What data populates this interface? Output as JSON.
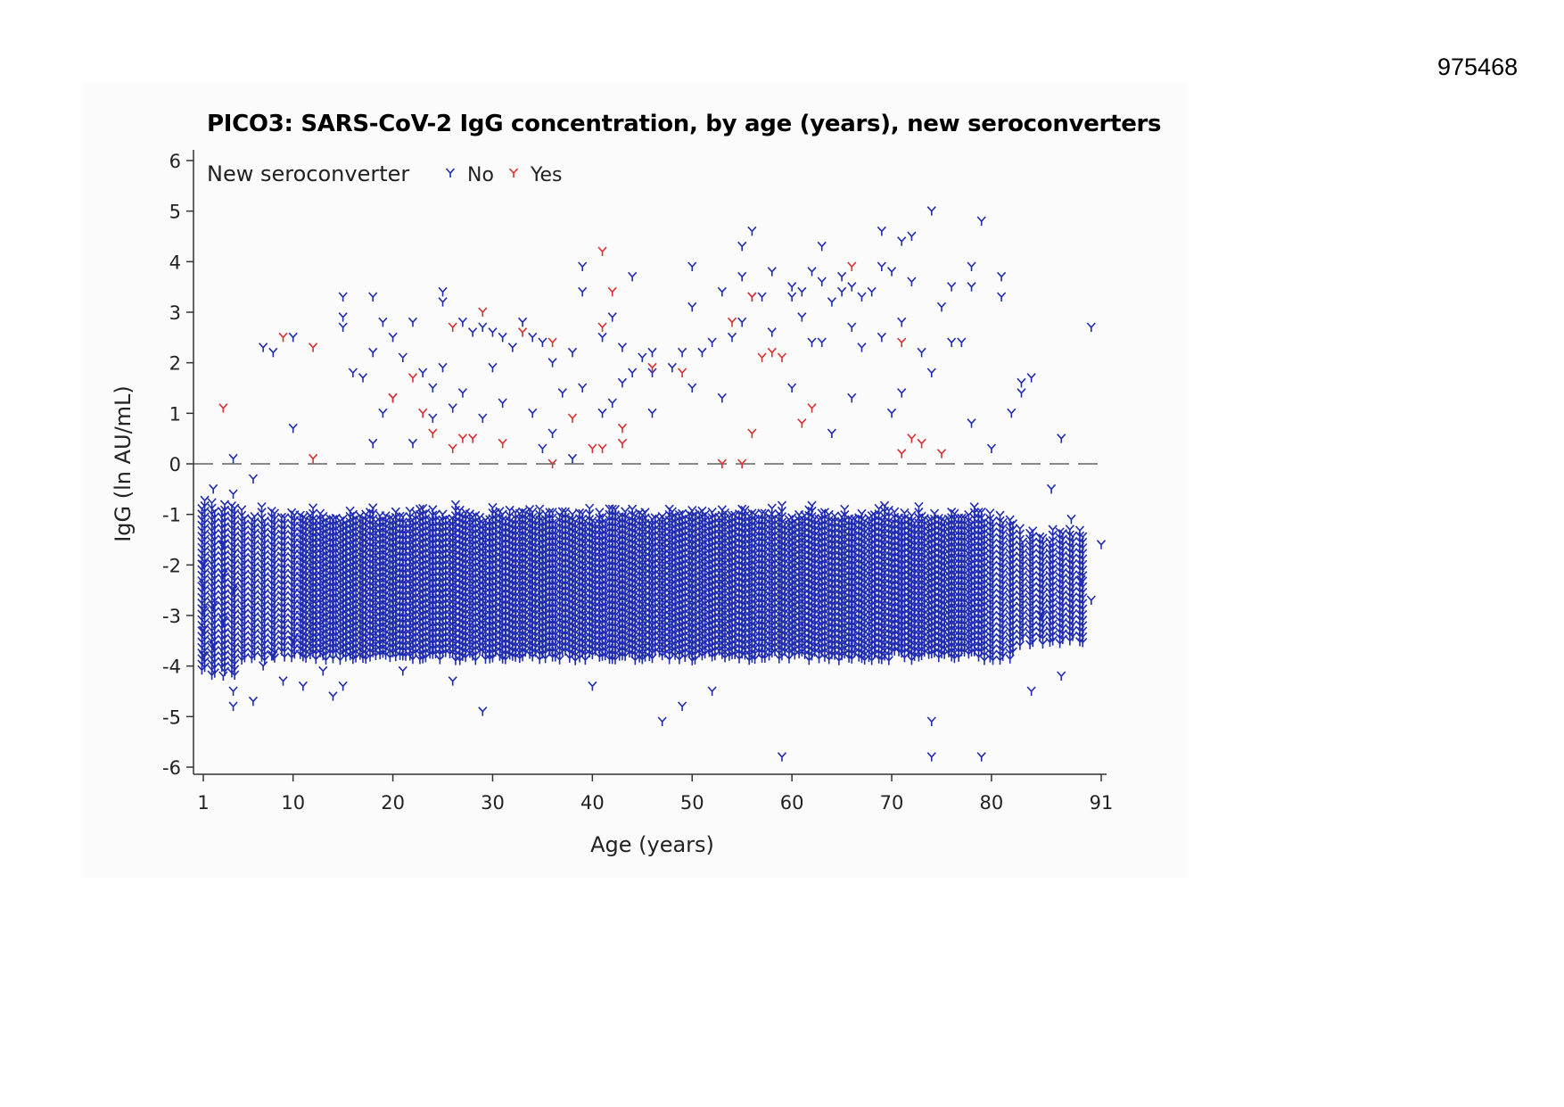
{
  "page_number": "975468",
  "chart_data": {
    "type": "scatter",
    "title": "PICO3: SARS-CoV-2 IgG concentration, by age (years), new seroconverters",
    "xlabel": "Age (years)",
    "ylabel": "IgG (ln AU/mL)",
    "xlim": [
      1,
      91
    ],
    "ylim": [
      -6,
      6
    ],
    "x_ticks": [
      "1",
      "10",
      "20",
      "30",
      "40",
      "50",
      "60",
      "70",
      "80",
      "91"
    ],
    "y_ticks": [
      "6",
      "5",
      "4",
      "3",
      "2",
      "1",
      "0",
      "-1",
      "-2",
      "-3",
      "-4",
      "-5",
      "-6"
    ],
    "reference_line": {
      "y": 0,
      "style": "dashed"
    },
    "legend": {
      "title": "New seroconverter",
      "placement": "top-left",
      "entries": [
        "No",
        "Yes"
      ]
    },
    "colors": {
      "No": "#1f2bb0",
      "Yes": "#d93030",
      "reference_line": "#888888"
    },
    "series": [
      {
        "name": "No",
        "points": [
          [
            1,
            -2.0
          ],
          [
            1,
            -2.4
          ],
          [
            1,
            -2.9
          ],
          [
            1,
            -3.3
          ],
          [
            1,
            -3.8
          ],
          [
            2,
            -0.5
          ],
          [
            2,
            -2.8
          ],
          [
            2,
            -3.6
          ],
          [
            3,
            -1.6
          ],
          [
            3,
            -2.2
          ],
          [
            3,
            -3.1
          ],
          [
            3,
            -4.2
          ],
          [
            4,
            -0.6
          ],
          [
            4,
            -2.5
          ],
          [
            4,
            -4.5
          ],
          [
            4,
            -4.8
          ],
          [
            4,
            0.1
          ],
          [
            6,
            -0.3
          ],
          [
            6,
            -4.7
          ],
          [
            7,
            2.3
          ],
          [
            7,
            -4.0
          ],
          [
            8,
            2.2
          ],
          [
            8,
            -3.8
          ],
          [
            9,
            -4.3
          ],
          [
            10,
            2.5
          ],
          [
            10,
            0.7
          ],
          [
            10,
            -3.5
          ],
          [
            11,
            -4.4
          ],
          [
            13,
            -4.1
          ],
          [
            14,
            -4.6
          ],
          [
            15,
            3.3
          ],
          [
            15,
            2.9
          ],
          [
            15,
            2.7
          ],
          [
            15,
            -4.4
          ],
          [
            16,
            1.8
          ],
          [
            17,
            1.7
          ],
          [
            18,
            3.3
          ],
          [
            18,
            2.2
          ],
          [
            18,
            0.4
          ],
          [
            19,
            2.8
          ],
          [
            19,
            1.0
          ],
          [
            20,
            2.5
          ],
          [
            20,
            1.3
          ],
          [
            21,
            2.1
          ],
          [
            21,
            -4.1
          ],
          [
            22,
            2.8
          ],
          [
            22,
            0.4
          ],
          [
            23,
            1.8
          ],
          [
            24,
            1.5
          ],
          [
            24,
            0.9
          ],
          [
            25,
            3.4
          ],
          [
            25,
            3.2
          ],
          [
            25,
            1.9
          ],
          [
            26,
            1.1
          ],
          [
            26,
            -4.3
          ],
          [
            27,
            2.8
          ],
          [
            27,
            1.4
          ],
          [
            28,
            2.6
          ],
          [
            29,
            2.7
          ],
          [
            29,
            0.9
          ],
          [
            29,
            -4.9
          ],
          [
            30,
            2.6
          ],
          [
            30,
            1.9
          ],
          [
            31,
            2.5
          ],
          [
            31,
            1.2
          ],
          [
            32,
            2.3
          ],
          [
            33,
            2.8
          ],
          [
            34,
            2.5
          ],
          [
            34,
            1.0
          ],
          [
            35,
            2.4
          ],
          [
            35,
            0.3
          ],
          [
            36,
            2.0
          ],
          [
            36,
            0.6
          ],
          [
            37,
            1.4
          ],
          [
            38,
            2.2
          ],
          [
            38,
            0.1
          ],
          [
            39,
            3.9
          ],
          [
            39,
            3.4
          ],
          [
            39,
            1.5
          ],
          [
            40,
            -4.4
          ],
          [
            41,
            2.5
          ],
          [
            41,
            1.0
          ],
          [
            42,
            2.9
          ],
          [
            42,
            1.2
          ],
          [
            43,
            2.3
          ],
          [
            43,
            1.6
          ],
          [
            44,
            3.7
          ],
          [
            44,
            1.8
          ],
          [
            45,
            2.1
          ],
          [
            46,
            2.2
          ],
          [
            46,
            1.8
          ],
          [
            46,
            1.0
          ],
          [
            47,
            -5.1
          ],
          [
            48,
            1.9
          ],
          [
            49,
            2.2
          ],
          [
            49,
            -4.8
          ],
          [
            50,
            3.9
          ],
          [
            50,
            3.1
          ],
          [
            50,
            1.5
          ],
          [
            51,
            2.2
          ],
          [
            52,
            2.4
          ],
          [
            52,
            -4.5
          ],
          [
            53,
            3.4
          ],
          [
            53,
            1.3
          ],
          [
            54,
            2.5
          ],
          [
            55,
            4.3
          ],
          [
            55,
            3.7
          ],
          [
            55,
            2.8
          ],
          [
            56,
            4.6
          ],
          [
            56,
            3.3
          ],
          [
            57,
            3.3
          ],
          [
            58,
            3.8
          ],
          [
            58,
            2.6
          ],
          [
            59,
            -5.8
          ],
          [
            60,
            3.5
          ],
          [
            60,
            3.3
          ],
          [
            60,
            1.5
          ],
          [
            61,
            3.4
          ],
          [
            61,
            2.9
          ],
          [
            62,
            3.8
          ],
          [
            62,
            2.4
          ],
          [
            63,
            4.3
          ],
          [
            63,
            3.6
          ],
          [
            63,
            2.4
          ],
          [
            64,
            3.2
          ],
          [
            64,
            0.6
          ],
          [
            65,
            3.7
          ],
          [
            65,
            3.4
          ],
          [
            66,
            3.5
          ],
          [
            66,
            2.7
          ],
          [
            66,
            1.3
          ],
          [
            67,
            3.3
          ],
          [
            67,
            2.3
          ],
          [
            68,
            3.4
          ],
          [
            69,
            4.6
          ],
          [
            69,
            3.9
          ],
          [
            69,
            2.5
          ],
          [
            70,
            3.8
          ],
          [
            70,
            1.0
          ],
          [
            71,
            4.4
          ],
          [
            71,
            2.8
          ],
          [
            71,
            1.4
          ],
          [
            72,
            4.5
          ],
          [
            72,
            3.6
          ],
          [
            73,
            2.2
          ],
          [
            74,
            5.0
          ],
          [
            74,
            1.8
          ],
          [
            74,
            -5.8
          ],
          [
            74,
            -5.1
          ],
          [
            75,
            3.1
          ],
          [
            76,
            3.5
          ],
          [
            76,
            2.4
          ],
          [
            77,
            2.4
          ],
          [
            78,
            3.9
          ],
          [
            78,
            3.5
          ],
          [
            78,
            0.8
          ],
          [
            79,
            4.8
          ],
          [
            79,
            -5.8
          ],
          [
            80,
            0.3
          ],
          [
            81,
            3.7
          ],
          [
            81,
            3.3
          ],
          [
            82,
            1.0
          ],
          [
            83,
            1.6
          ],
          [
            83,
            1.4
          ],
          [
            84,
            1.7
          ],
          [
            84,
            -4.5
          ],
          [
            85,
            -3.0
          ],
          [
            86,
            -0.5
          ],
          [
            87,
            0.5
          ],
          [
            87,
            -4.2
          ],
          [
            88,
            -1.1
          ],
          [
            89,
            -2.3
          ],
          [
            90,
            2.7
          ],
          [
            90,
            -2.7
          ],
          [
            91,
            -1.6
          ]
        ]
      },
      {
        "name": "Yes",
        "points": [
          [
            3,
            1.1
          ],
          [
            9,
            2.5
          ],
          [
            12,
            2.3
          ],
          [
            12,
            0.1
          ],
          [
            20,
            1.3
          ],
          [
            22,
            1.7
          ],
          [
            23,
            1.0
          ],
          [
            24,
            0.6
          ],
          [
            26,
            0.3
          ],
          [
            26,
            2.7
          ],
          [
            27,
            0.5
          ],
          [
            28,
            0.5
          ],
          [
            29,
            3.0
          ],
          [
            31,
            0.4
          ],
          [
            33,
            2.6
          ],
          [
            36,
            2.4
          ],
          [
            36,
            0.0
          ],
          [
            38,
            0.9
          ],
          [
            40,
            0.3
          ],
          [
            41,
            4.2
          ],
          [
            41,
            2.7
          ],
          [
            41,
            0.3
          ],
          [
            42,
            3.4
          ],
          [
            43,
            0.7
          ],
          [
            43,
            0.4
          ],
          [
            46,
            1.9
          ],
          [
            49,
            1.8
          ],
          [
            53,
            0.0
          ],
          [
            54,
            2.8
          ],
          [
            55,
            0.0
          ],
          [
            56,
            3.3
          ],
          [
            56,
            0.6
          ],
          [
            57,
            2.1
          ],
          [
            58,
            2.2
          ],
          [
            59,
            2.1
          ],
          [
            61,
            0.8
          ],
          [
            62,
            1.1
          ],
          [
            66,
            3.9
          ],
          [
            71,
            2.4
          ],
          [
            71,
            0.2
          ],
          [
            72,
            0.5
          ],
          [
            73,
            0.4
          ],
          [
            75,
            0.2
          ]
        ]
      }
    ]
  }
}
